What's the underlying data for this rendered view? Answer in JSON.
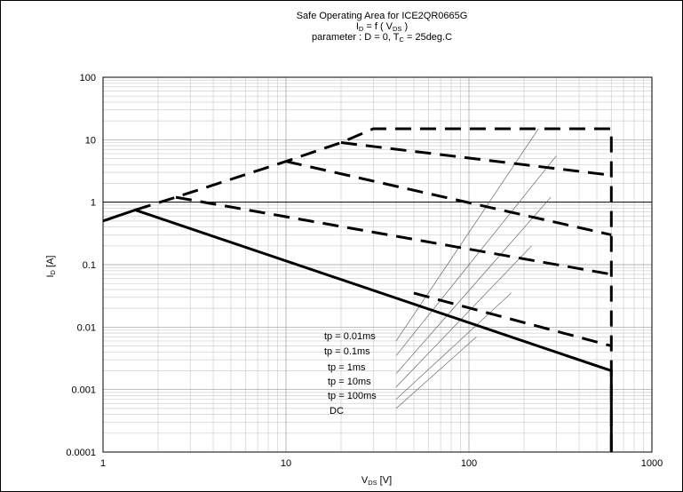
{
  "chart_data": {
    "type": "line",
    "title": {
      "line1": "Safe Operating Area for ICE2QR0665G",
      "line2": {
        "main": "I",
        "sub": "D",
        "rest": " = f ( V",
        "sub2": "DS",
        "end": " )"
      },
      "line3": {
        "main": "parameter : D = 0, T",
        "sub": "C",
        "rest": " = 25deg.C"
      }
    },
    "xlabel": {
      "main": "V",
      "sub": "DS",
      "rest": " [V]"
    },
    "ylabel": {
      "main": "I",
      "sub": "D",
      "rest": " [A]"
    },
    "x_scale": "log",
    "y_scale": "log",
    "xlim": [
      1,
      1000
    ],
    "ylim": [
      0.0001,
      100
    ],
    "x_ticks": [
      {
        "value": 1,
        "label": "1"
      },
      {
        "value": 10,
        "label": "10"
      },
      {
        "value": 100,
        "label": "100"
      },
      {
        "value": 1000,
        "label": "1000"
      }
    ],
    "y_ticks": [
      {
        "value": 0.0001,
        "label": "0.0001"
      },
      {
        "value": 0.001,
        "label": "0.001"
      },
      {
        "value": 0.01,
        "label": "0.01"
      },
      {
        "value": 0.1,
        "label": "0.1"
      },
      {
        "value": 1,
        "label": "1"
      },
      {
        "value": 10,
        "label": "10"
      },
      {
        "value": 100,
        "label": "100"
      }
    ],
    "grid": true,
    "reference_line_y": 1,
    "series": [
      {
        "style": "solid",
        "points": [
          [
            1,
            0.5
          ],
          [
            1.5,
            0.75
          ],
          [
            600,
            0.002
          ],
          [
            600,
            0.0001
          ]
        ]
      },
      {
        "style": "dashed",
        "points": [
          [
            1.5,
            0.75
          ],
          [
            2.5,
            1.2
          ],
          [
            10,
            4.5
          ],
          [
            20,
            9
          ],
          [
            30,
            15
          ],
          [
            100,
            15
          ],
          [
            600,
            15
          ],
          [
            600,
            0.0001
          ]
        ]
      },
      {
        "style": "dashed",
        "points": [
          [
            20,
            9
          ],
          [
            600,
            2.7
          ]
        ]
      },
      {
        "style": "dashed",
        "points": [
          [
            10,
            4.5
          ],
          [
            600,
            0.3
          ]
        ]
      },
      {
        "style": "dashed",
        "points": [
          [
            2.5,
            1.2
          ],
          [
            600,
            0.07
          ]
        ]
      },
      {
        "style": "dashed",
        "points": [
          [
            50,
            0.035
          ],
          [
            600,
            0.005
          ]
        ]
      }
    ],
    "annotation_lines": [
      {
        "points": [
          [
            40,
            0.006
          ],
          [
            240,
            15
          ]
        ]
      },
      {
        "points": [
          [
            40,
            0.0035
          ],
          [
            300,
            5.5
          ]
        ]
      },
      {
        "points": [
          [
            40,
            0.0018
          ],
          [
            280,
            1.2
          ]
        ]
      },
      {
        "points": [
          [
            40,
            0.0011
          ],
          [
            220,
            0.2
          ]
        ]
      },
      {
        "points": [
          [
            40,
            0.0007
          ],
          [
            170,
            0.035
          ]
        ]
      },
      {
        "points": [
          [
            40,
            0.0005
          ],
          [
            110,
            0.007
          ]
        ]
      }
    ],
    "annotations": [
      {
        "text": "tp = 0.01ms"
      },
      {
        "text": "tp = 0.1ms"
      },
      {
        "text": "tp = 1ms"
      },
      {
        "text": "tp = 10ms"
      },
      {
        "text": "tp = 100ms"
      },
      {
        "text": "DC"
      }
    ]
  }
}
